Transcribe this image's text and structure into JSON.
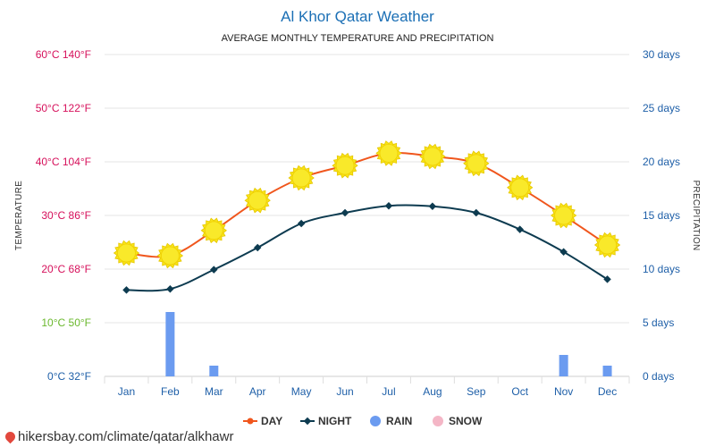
{
  "chart_data": {
    "type": "line",
    "title": "Al Khor Qatar Weather",
    "subtitle": "AVERAGE MONTHLY TEMPERATURE AND PRECIPITATION",
    "ylabel_left": "TEMPERATURE",
    "ylabel_right": "PRECIPITATION",
    "categories": [
      "Jan",
      "Feb",
      "Mar",
      "Apr",
      "May",
      "Jun",
      "Jul",
      "Aug",
      "Sep",
      "Oct",
      "Nov",
      "Dec"
    ],
    "ylim_celsius": [
      0,
      60
    ],
    "ylim_days": [
      0,
      30
    ],
    "left_ticks": [
      {
        "value": 0,
        "label": "0°C 32°F",
        "color": "#1e5fa8"
      },
      {
        "value": 10,
        "label": "10°C 50°F",
        "color": "#6ab82c"
      },
      {
        "value": 20,
        "label": "20°C 68°F",
        "color": "#d6105b"
      },
      {
        "value": 30,
        "label": "30°C 86°F",
        "color": "#d6105b"
      },
      {
        "value": 40,
        "label": "40°C 104°F",
        "color": "#d6105b"
      },
      {
        "value": 50,
        "label": "50°C 122°F",
        "color": "#d6105b"
      },
      {
        "value": 60,
        "label": "60°C 140°F",
        "color": "#d6105b"
      }
    ],
    "right_ticks": [
      {
        "value": 0,
        "label": "0 days"
      },
      {
        "value": 5,
        "label": "5 days"
      },
      {
        "value": 10,
        "label": "10 days"
      },
      {
        "value": 15,
        "label": "15 days"
      },
      {
        "value": 20,
        "label": "20 days"
      },
      {
        "value": 25,
        "label": "25 days"
      },
      {
        "value": 30,
        "label": "30 days"
      }
    ],
    "series": [
      {
        "name": "DAY",
        "type": "line",
        "unit": "°C",
        "color": "#f0561d",
        "marker": "sun-icon",
        "values": [
          23,
          22.5,
          27.2,
          32.8,
          37,
          39.3,
          41.6,
          41,
          39.7,
          35.2,
          30,
          24.5
        ]
      },
      {
        "name": "NIGHT",
        "type": "line",
        "unit": "°C",
        "color": "#0d3b50",
        "marker": "diamond",
        "values": [
          16.1,
          16.3,
          19.9,
          24,
          28.5,
          30.5,
          31.8,
          31.7,
          30.5,
          27.4,
          23.2,
          18.1
        ]
      },
      {
        "name": "RAIN",
        "type": "bar",
        "unit": "days",
        "color": "#6b9bf0",
        "marker": "circle",
        "values": [
          0,
          6,
          1,
          0,
          0,
          0,
          0,
          0,
          0,
          0,
          2,
          1
        ]
      },
      {
        "name": "SNOW",
        "type": "bar",
        "unit": "days",
        "color": "#f4b6c6",
        "marker": "circle",
        "values": [
          0,
          0,
          0,
          0,
          0,
          0,
          0,
          0,
          0,
          0,
          0,
          0
        ]
      }
    ],
    "legend_position": "bottom",
    "grid": true
  },
  "footer": {
    "source_text": "hikersbay.com/climate/qatar/alkhawr",
    "icon": "location-pin-icon"
  }
}
